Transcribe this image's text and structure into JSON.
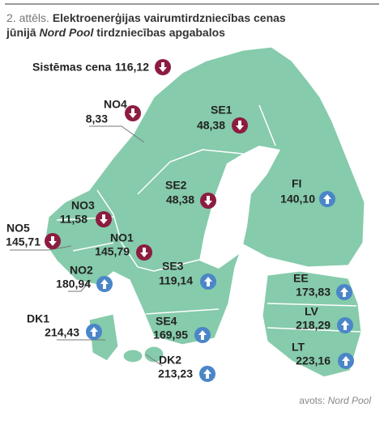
{
  "header": {
    "figure": "2. attēls.",
    "title_line1": "Elektroenerģijas vairumtirdzniecības cenas",
    "title_line2a": "jūnijā",
    "title_line2b": "Nord Pool",
    "title_line2c": "tirdzniecības apgabalos"
  },
  "system_price": {
    "label": "Sistēmas cena",
    "value": "116,12",
    "trend": "down"
  },
  "regions": [
    {
      "name": "NO4",
      "value": "8,33",
      "trend": "down"
    },
    {
      "name": "SE1",
      "value": "48,38",
      "trend": "down"
    },
    {
      "name": "FI",
      "value": "140,10",
      "trend": "up"
    },
    {
      "name": "SE2",
      "value": "48,38",
      "trend": "down"
    },
    {
      "name": "NO3",
      "value": "11,58",
      "trend": "down"
    },
    {
      "name": "NO5",
      "value": "145,71",
      "trend": "down"
    },
    {
      "name": "NO1",
      "value": "145,79",
      "trend": "down"
    },
    {
      "name": "NO2",
      "value": "180,94",
      "trend": "up"
    },
    {
      "name": "SE3",
      "value": "119,14",
      "trend": "up"
    },
    {
      "name": "EE",
      "value": "173,83",
      "trend": "up"
    },
    {
      "name": "LV",
      "value": "218,29",
      "trend": "up"
    },
    {
      "name": "DK1",
      "value": "214,43",
      "trend": "up"
    },
    {
      "name": "SE4",
      "value": "169,95",
      "trend": "up"
    },
    {
      "name": "LT",
      "value": "223,16",
      "trend": "up"
    },
    {
      "name": "DK2",
      "value": "213,23",
      "trend": "up"
    }
  ],
  "footer": {
    "source_label": "avots:",
    "source_name": "Nord Pool"
  }
}
